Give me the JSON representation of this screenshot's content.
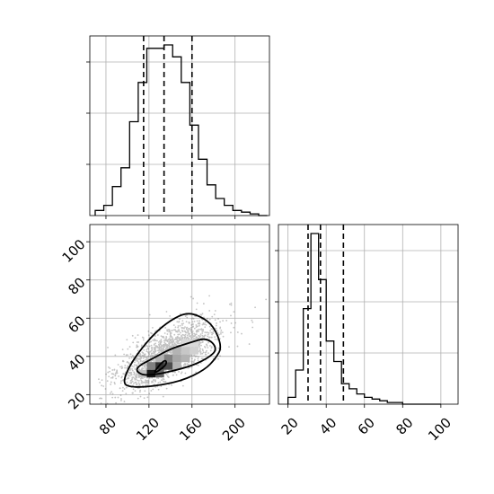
{
  "chart_data": {
    "type": "corner",
    "parameters": [
      "",
      ""
    ],
    "grid": true,
    "panels": [
      {
        "id": "hist_x",
        "type": "histogram-step",
        "xlim": [
          65,
          232
        ],
        "x_ticks": [
          80,
          120,
          160,
          200
        ],
        "bin_edges": [
          70,
          78,
          86,
          94,
          102,
          110,
          118,
          126,
          134,
          142,
          150,
          158,
          166,
          174,
          182,
          190,
          198,
          206,
          214,
          222,
          230
        ],
        "counts": [
          3,
          6,
          17,
          28,
          55,
          78,
          98,
          98,
          100,
          93,
          78,
          53,
          33,
          18,
          10,
          6,
          3,
          2,
          1,
          0
        ],
        "quantiles": [
          115,
          134,
          160
        ]
      },
      {
        "id": "joint",
        "type": "2d-density",
        "xlim": [
          65,
          232
        ],
        "ylim": [
          15,
          109
        ],
        "x_ticks": [
          80,
          120,
          160,
          200
        ],
        "y_ticks": [
          20,
          40,
          60,
          80,
          100
        ],
        "x_tick_labels": [
          "80",
          "120",
          "160",
          "200"
        ],
        "y_tick_labels": [
          "20",
          "40",
          "60",
          "80",
          "100"
        ],
        "contours": [
          [
            [
              122,
              30
            ],
            [
              137,
              35.5
            ],
            [
              135,
              39
            ]
          ],
          [
            [
              108,
              32
            ],
            [
              118,
              29.5
            ],
            [
              155,
              34
            ],
            [
              175,
              39
            ],
            [
              184,
              44
            ],
            [
              174,
              50
            ],
            [
              157,
              47
            ],
            [
              140,
              44
            ],
            [
              124,
              39
            ],
            [
              110,
              35
            ]
          ],
          [
            [
              96,
              26
            ],
            [
              102,
              24
            ],
            [
              120,
              24
            ],
            [
              150,
              27
            ],
            [
              172,
              33
            ],
            [
              182,
              39
            ],
            [
              188,
              45
            ],
            [
              180,
              56
            ],
            [
              168,
              61
            ],
            [
              155,
              63
            ],
            [
              140,
              59
            ],
            [
              125,
              52
            ],
            [
              110,
              42
            ],
            [
              100,
              33
            ]
          ]
        ],
        "density_cells": [
          {
            "x": [
              118,
              126
            ],
            "y": [
              29,
              33
            ],
            "level": 0.9
          },
          {
            "x": [
              126,
              134
            ],
            "y": [
              33,
              37
            ],
            "level": 0.8
          },
          {
            "x": [
              134,
              142
            ],
            "y": [
              33,
              37
            ],
            "level": 0.7
          },
          {
            "x": [
              126,
              134
            ],
            "y": [
              29,
              33
            ],
            "level": 0.6
          },
          {
            "x": [
              118,
              126
            ],
            "y": [
              33,
              37
            ],
            "level": 0.5
          },
          {
            "x": [
              134,
              142
            ],
            "y": [
              37,
              41
            ],
            "level": 0.5
          },
          {
            "x": [
              142,
              150
            ],
            "y": [
              37,
              41
            ],
            "level": 0.35
          },
          {
            "x": [
              150,
              158
            ],
            "y": [
              37,
              41
            ],
            "level": 0.3
          },
          {
            "x": [
              142,
              150
            ],
            "y": [
              41,
              45
            ],
            "level": 0.3
          },
          {
            "x": [
              150,
              158
            ],
            "y": [
              41,
              45
            ],
            "level": 0.22
          },
          {
            "x": [
              158,
              166
            ],
            "y": [
              41,
              45
            ],
            "level": 0.18
          },
          {
            "x": [
              126,
              134
            ],
            "y": [
              37,
              41
            ],
            "level": 0.3
          },
          {
            "x": [
              142,
              150
            ],
            "y": [
              33,
              37
            ],
            "level": 0.3
          },
          {
            "x": [
              110,
              118
            ],
            "y": [
              29,
              33
            ],
            "level": 0.25
          },
          {
            "x": [
              158,
              166
            ],
            "y": [
              45,
              49
            ],
            "level": 0.15
          },
          {
            "x": [
              150,
              158
            ],
            "y": [
              45,
              49
            ],
            "level": 0.15
          }
        ]
      },
      {
        "id": "hist_y",
        "type": "histogram-step",
        "xlim": [
          15,
          109
        ],
        "x_ticks": [
          20,
          40,
          60,
          80,
          100
        ],
        "x_tick_labels": [
          "20",
          "40",
          "60",
          "80",
          "100"
        ],
        "bin_edges": [
          20,
          24,
          28,
          32,
          36,
          40,
          44,
          48,
          52,
          56,
          60,
          64,
          68,
          72,
          76,
          80,
          84,
          88,
          92,
          96,
          100
        ],
        "counts": [
          4,
          20,
          56,
          100,
          73,
          37,
          25,
          12,
          9,
          6,
          4,
          3,
          2,
          1,
          1,
          0,
          0,
          0,
          0,
          0
        ],
        "quantiles": [
          30.5,
          37,
          49
        ]
      }
    ]
  }
}
